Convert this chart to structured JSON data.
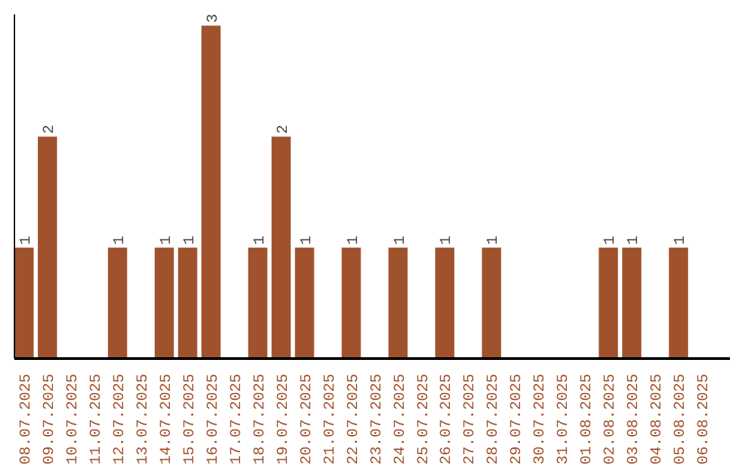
{
  "chart_data": {
    "type": "bar",
    "categories": [
      "08.07.2025",
      "09.07.2025",
      "10.07.2025",
      "11.07.2025",
      "12.07.2025",
      "13.07.2025",
      "14.07.2025",
      "15.07.2025",
      "16.07.2025",
      "17.07.2025",
      "18.07.2025",
      "19.07.2025",
      "20.07.2025",
      "21.07.2025",
      "22.07.2025",
      "23.07.2025",
      "24.07.2025",
      "25.07.2025",
      "26.07.2025",
      "27.07.2025",
      "28.07.2025",
      "29.07.2025",
      "30.07.2025",
      "31.07.2025",
      "01.08.2025",
      "02.08.2025",
      "03.08.2025",
      "04.08.2025",
      "05.08.2025",
      "06.08.2025"
    ],
    "values": [
      1,
      2,
      0,
      0,
      1,
      0,
      1,
      1,
      3,
      0,
      1,
      2,
      1,
      0,
      1,
      0,
      1,
      0,
      1,
      0,
      1,
      0,
      0,
      0,
      0,
      1,
      1,
      0,
      1,
      0
    ],
    "value_labels": [
      "1",
      "2",
      null,
      null,
      "1",
      null,
      "1",
      "1",
      "3",
      null,
      "1",
      "2",
      "1",
      null,
      "1",
      null,
      "1",
      null,
      "1",
      null,
      "1",
      null,
      null,
      null,
      null,
      "1",
      "1",
      null,
      "1",
      null
    ],
    "color": "#a0522d",
    "ylim": [
      0,
      3.1
    ],
    "tick_labels": "x",
    "grid": false
  }
}
